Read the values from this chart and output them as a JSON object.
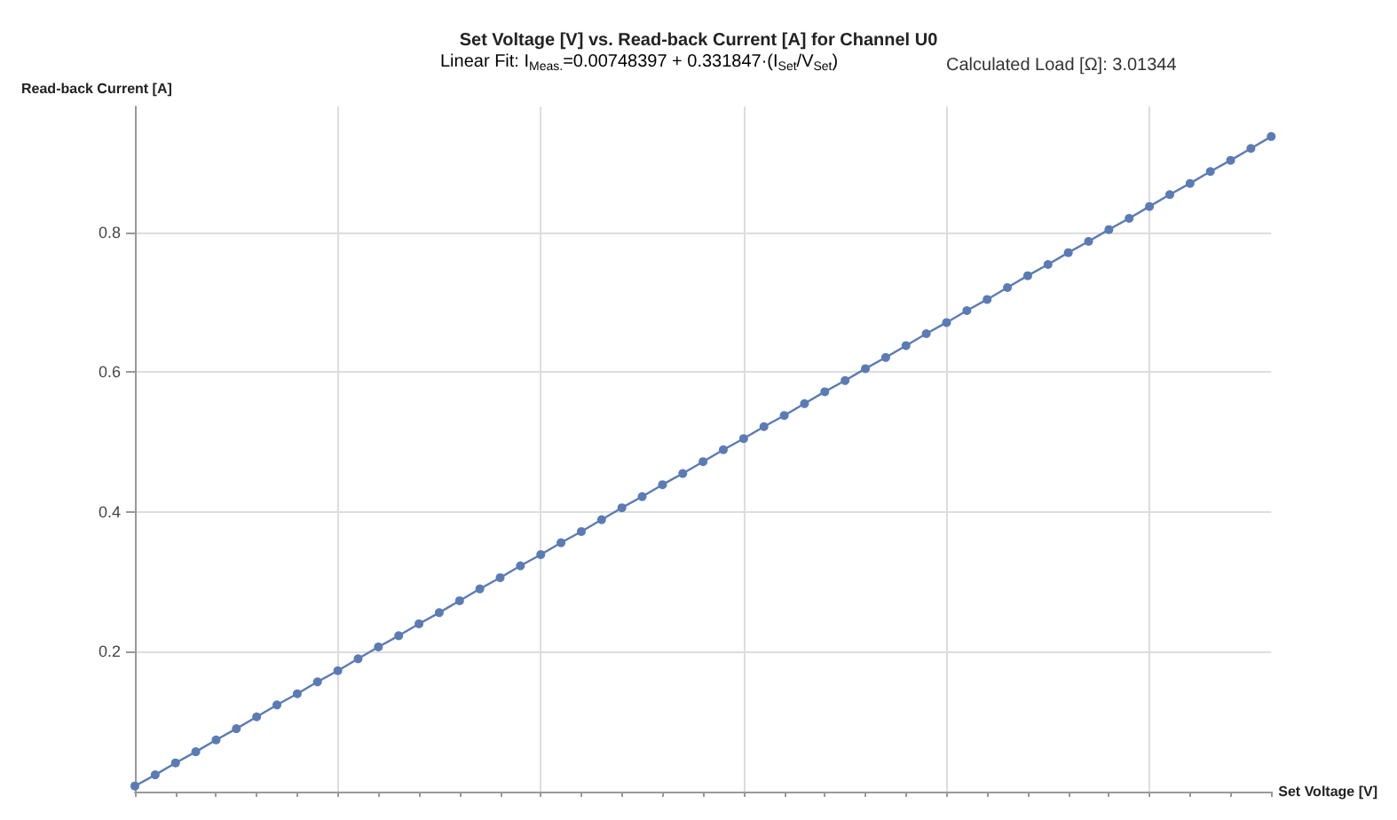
{
  "chart_data": {
    "type": "line",
    "title": "Set Voltage [V] vs. Read-back Current [A] for Channel U0",
    "subtitle": "Linear Fit: I$_{Meas.}$=0.00748397 + 0.331847·(I$_{Set}$/V$_{Set}$)",
    "annotations": [
      "Calculated Load [Ω]: 3.01344"
    ],
    "xlabel": "Set Voltage [V]",
    "ylabel": "Read-back Current [A]",
    "categories": [
      null,
      null,
      null,
      null,
      null,
      null,
      null,
      null,
      null,
      null,
      null,
      null,
      null,
      null,
      null,
      null,
      null,
      null,
      null,
      null,
      null,
      null,
      null,
      null,
      null,
      null,
      null,
      null,
      null,
      null,
      null,
      null,
      null,
      null,
      null,
      null,
      null,
      null,
      null,
      null,
      null,
      null,
      null,
      null,
      null,
      null,
      null,
      null,
      null,
      null,
      null,
      null,
      null,
      null,
      null,
      null,
      null
    ],
    "series": [
      {
        "color": "#5b7bb5",
        "values": [
          0.008,
          0.024,
          0.041,
          0.057,
          0.074,
          0.09,
          0.107,
          0.124,
          0.14,
          0.157,
          0.173,
          0.19,
          0.207,
          0.223,
          0.24,
          0.256,
          0.273,
          0.29,
          0.306,
          0.323,
          0.339,
          0.356,
          0.372,
          0.389,
          0.406,
          0.422,
          0.439,
          0.455,
          0.472,
          0.489,
          0.505,
          0.522,
          0.538,
          0.555,
          0.572,
          0.588,
          0.605,
          0.621,
          0.638,
          0.655,
          0.671,
          0.688,
          0.704,
          0.721,
          0.738,
          0.754,
          0.771,
          0.787,
          0.804,
          0.82,
          0.837,
          0.854,
          0.87,
          0.887,
          0.903,
          0.92,
          0.937
        ]
      }
    ],
    "ylim": [
      0,
      0.98
    ],
    "yticks": [
      0.2,
      0.4,
      0.6,
      0.8
    ],
    "tick_labels": "y",
    "grid": true,
    "marker": "circle",
    "line_style": "solid"
  }
}
